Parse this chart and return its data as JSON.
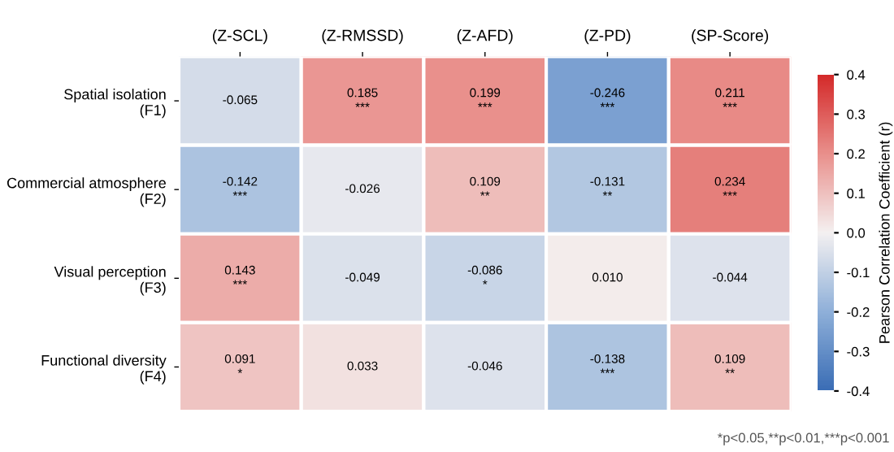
{
  "chart_data": {
    "type": "heatmap",
    "categories": [
      "(Z-SCL)",
      "(Z-RMSSD)",
      "(Z-AFD)",
      "(Z-PD)",
      "(SP-Score)"
    ],
    "y_categories": [
      "Spatial isolation\n(F1)",
      "Commercial atmosphere\n(F2)",
      "Visual perception\n(F3)",
      "Functional diversity\n(F4)"
    ],
    "cells": [
      [
        -0.065,
        0.185,
        0.199,
        -0.246,
        0.211
      ],
      [
        -0.142,
        -0.026,
        0.109,
        -0.131,
        0.234
      ],
      [
        0.143,
        -0.049,
        -0.086,
        0.01,
        -0.044
      ],
      [
        0.091,
        0.033,
        -0.046,
        -0.138,
        0.109
      ]
    ],
    "cell_labels": [
      [
        "-0.065",
        "0.185\n***",
        "0.199\n***",
        "-0.246\n***",
        "0.211\n***"
      ],
      [
        "-0.142\n***",
        "-0.026",
        "0.109\n**",
        "-0.131\n**",
        "0.234\n***"
      ],
      [
        "0.143\n***",
        "-0.049",
        "-0.086\n*",
        "0.010",
        "-0.044"
      ],
      [
        "0.091\n*",
        "0.033",
        "-0.046",
        "-0.138\n***",
        "0.109\n**"
      ]
    ],
    "clim": [
      -0.4,
      0.4
    ],
    "cticks": [
      {
        "value": -0.4,
        "label": "-0.4"
      },
      {
        "value": -0.3,
        "label": "-0.3"
      },
      {
        "value": -0.2,
        "label": "-0.2"
      },
      {
        "value": -0.1,
        "label": "-0.1"
      },
      {
        "value": 0,
        "label": "0.0"
      },
      {
        "value": 0.1,
        "label": "0.1"
      },
      {
        "value": 0.2,
        "label": "0.2"
      },
      {
        "value": 0.3,
        "label": "0.3"
      },
      {
        "value": 0.4,
        "label": "0.4"
      }
    ],
    "clabel": "Pearson Correlation Coefficient (r)",
    "annotations": [
      "*p<0.05,**p<0.01,***p<0.001"
    ]
  }
}
